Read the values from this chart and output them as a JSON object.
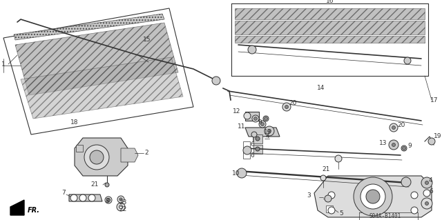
{
  "bg_color": "#ffffff",
  "diagram_code": "S04A-B1401",
  "line_color": "#333333",
  "gray_fill": "#aaaaaa",
  "dark_gray": "#555555",
  "fr_label": "FR.",
  "figsize": [
    6.4,
    3.19
  ],
  "dpi": 100
}
